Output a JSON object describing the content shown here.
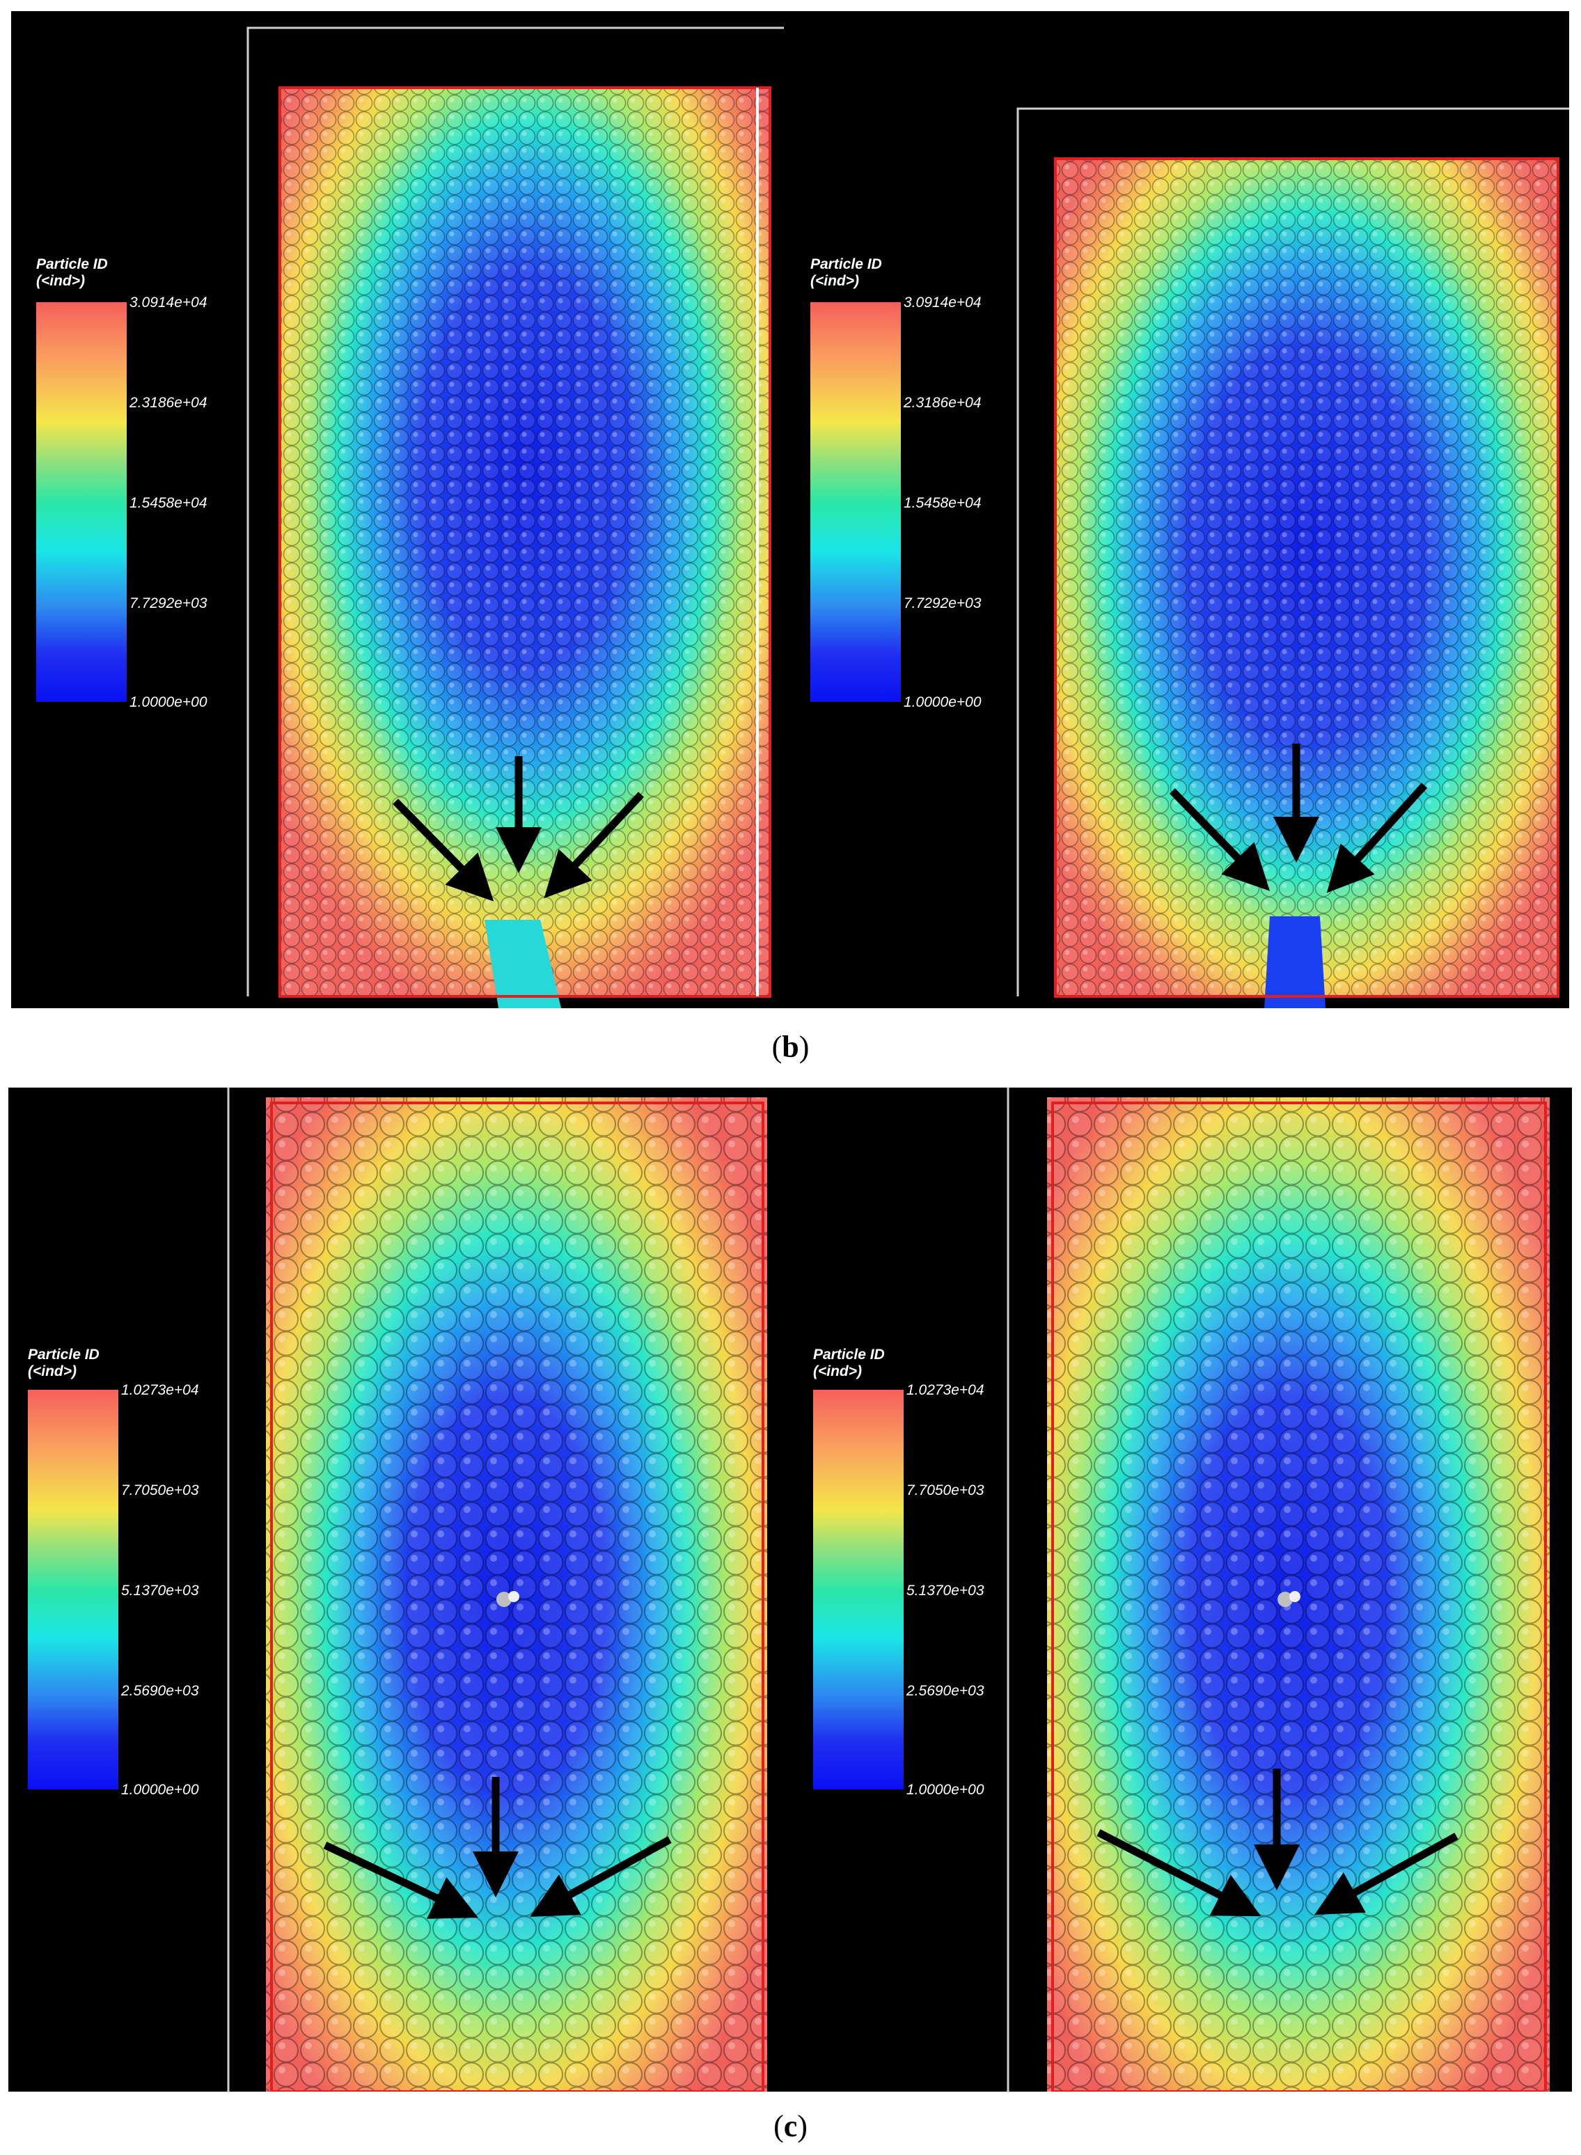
{
  "figure_b": {
    "caption_open": "(",
    "caption_letter": "b",
    "caption_close": ")",
    "left": {
      "legend_title": "Particle ID\n(<ind>)",
      "ticks": [
        "3.0914e+04",
        "2.3186e+04",
        "1.5458e+04",
        "7.7292e+03",
        "1.0000e+00"
      ]
    },
    "right": {
      "legend_title": "Particle ID\n(<ind>)",
      "ticks": [
        "3.0914e+04",
        "2.3186e+04",
        "1.5458e+04",
        "7.7292e+03",
        "1.0000e+00"
      ]
    }
  },
  "figure_c": {
    "caption_open": "(",
    "caption_letter": "c",
    "caption_close": ")",
    "left": {
      "legend_title": "Particle ID\n(<ind>)",
      "ticks": [
        "1.0273e+04",
        "7.7050e+03",
        "5.1370e+03",
        "2.5690e+03",
        "1.0000e+00"
      ]
    },
    "right": {
      "legend_title": "Particle ID\n(<ind>)",
      "ticks": [
        "1.0273e+04",
        "7.7050e+03",
        "5.1370e+03",
        "2.5690e+03",
        "1.0000e+00"
      ]
    }
  },
  "colors": {
    "background": "#000000",
    "box_edge": "#e02020",
    "frame_edge": "#cfcfcf",
    "arrow": "#000000",
    "high": "#f5605a",
    "low": "#0a10f2"
  }
}
